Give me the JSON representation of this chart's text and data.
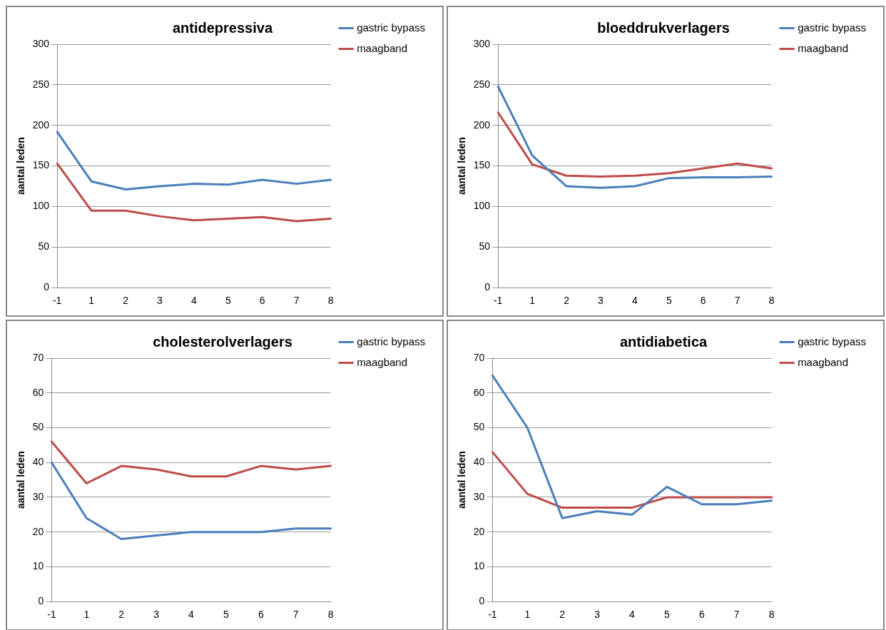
{
  "chart_data": [
    {
      "type": "line",
      "title": "antidepressiva",
      "ylabel": "aantal leden",
      "categories": [
        "-1",
        "1",
        "2",
        "3",
        "4",
        "5",
        "6",
        "7",
        "8"
      ],
      "ylim": [
        0,
        300
      ],
      "yticks": [
        0,
        50,
        100,
        150,
        200,
        250,
        300
      ],
      "grid": "y",
      "legend": "top right",
      "series": [
        {
          "name": "gastric bypass",
          "color": "#4a7ebb",
          "values": [
            192,
            131,
            121,
            125,
            128,
            127,
            133,
            128,
            133
          ]
        },
        {
          "name": "maagband",
          "color": "#be4b48",
          "values": [
            153,
            95,
            95,
            88,
            83,
            85,
            87,
            82,
            85
          ]
        }
      ]
    },
    {
      "type": "line",
      "title": "bloeddrukverlagers",
      "ylabel": "aantal leden",
      "categories": [
        "-1",
        "1",
        "2",
        "3",
        "4",
        "5",
        "6",
        "7",
        "8"
      ],
      "ylim": [
        0,
        300
      ],
      "yticks": [
        0,
        50,
        100,
        150,
        200,
        250,
        300
      ],
      "grid": "y",
      "legend": "top right",
      "series": [
        {
          "name": "gastric bypass",
          "color": "#4a7ebb",
          "values": [
            248,
            163,
            125,
            123,
            125,
            135,
            136,
            136,
            137
          ]
        },
        {
          "name": "maagband",
          "color": "#be4b48",
          "values": [
            216,
            152,
            138,
            137,
            138,
            141,
            147,
            153,
            147
          ]
        }
      ]
    },
    {
      "type": "line",
      "title": "cholesterolverlagers",
      "ylabel": "aantal leden",
      "categories": [
        "-1",
        "1",
        "2",
        "3",
        "4",
        "5",
        "6",
        "7",
        "8"
      ],
      "ylim": [
        0,
        70
      ],
      "yticks": [
        0,
        10,
        20,
        30,
        40,
        50,
        60,
        70
      ],
      "grid": "y",
      "legend": "top right",
      "series": [
        {
          "name": "gastric bypass",
          "color": "#4a7ebb",
          "values": [
            40,
            24,
            18,
            19,
            20,
            20,
            20,
            21,
            21
          ]
        },
        {
          "name": "maagband",
          "color": "#be4b48",
          "values": [
            46,
            34,
            39,
            38,
            36,
            36,
            39,
            38,
            39
          ]
        }
      ]
    },
    {
      "type": "line",
      "title": "antidiabetica",
      "ylabel": "aantal leden",
      "categories": [
        "-1",
        "1",
        "2",
        "3",
        "4",
        "5",
        "6",
        "7",
        "8"
      ],
      "ylim": [
        0,
        70
      ],
      "yticks": [
        0,
        10,
        20,
        30,
        40,
        50,
        60,
        70
      ],
      "grid": "y",
      "legend": "top right",
      "series": [
        {
          "name": "gastric bypass",
          "color": "#4a7ebb",
          "values": [
            65,
            50,
            24,
            26,
            25,
            33,
            28,
            28,
            29
          ]
        },
        {
          "name": "maagband",
          "color": "#be4b48",
          "values": [
            43,
            31,
            27,
            27,
            27,
            30,
            30,
            30,
            30
          ]
        }
      ]
    }
  ]
}
